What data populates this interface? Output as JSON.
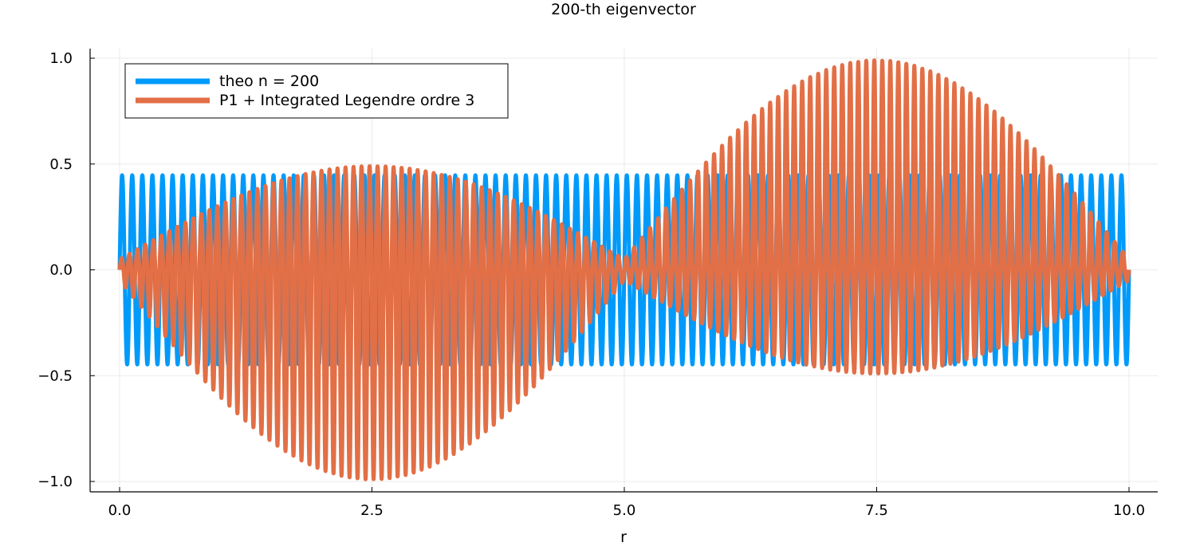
{
  "chart_data": {
    "type": "line",
    "title": "200-th eigenvector",
    "xlabel": "r",
    "ylabel": "",
    "xlim": [
      -0.3,
      10.3
    ],
    "ylim": [
      -1.05,
      1.05
    ],
    "xticks": [
      0.0,
      2.5,
      5.0,
      7.5,
      10.0
    ],
    "xtick_labels": [
      "0.0",
      "2.5",
      "5.0",
      "7.5",
      "10.0"
    ],
    "yticks": [
      -1.0,
      -0.5,
      0.0,
      0.5,
      1.0
    ],
    "ytick_labels": [
      "−1.0",
      "−0.5",
      "0.0",
      "0.5",
      "1.0"
    ],
    "grid": true,
    "legend_position": "top-left",
    "series": [
      {
        "name": "theo n = 200",
        "color": "#009AFA",
        "function": "0.447 * sin(200*pi*r/10)",
        "x_range": [
          0,
          10
        ],
        "amplitude": 0.447,
        "half_periods_over_domain": 200
      },
      {
        "name": "P1 + Integrated Legendre ordre 3",
        "color": "#E26F46",
        "function": "sin(aliased oscillation) * envelope(|sin(pi*r/5)|)",
        "x_range": [
          0,
          10
        ],
        "envelope_peaks": [
          {
            "x": 2.45,
            "min": -0.99,
            "max": 0.49
          },
          {
            "x": 7.5,
            "min": -0.49,
            "max": 0.99
          }
        ],
        "envelope_nodes": [
          0.0,
          5.0,
          10.0
        ]
      }
    ]
  }
}
